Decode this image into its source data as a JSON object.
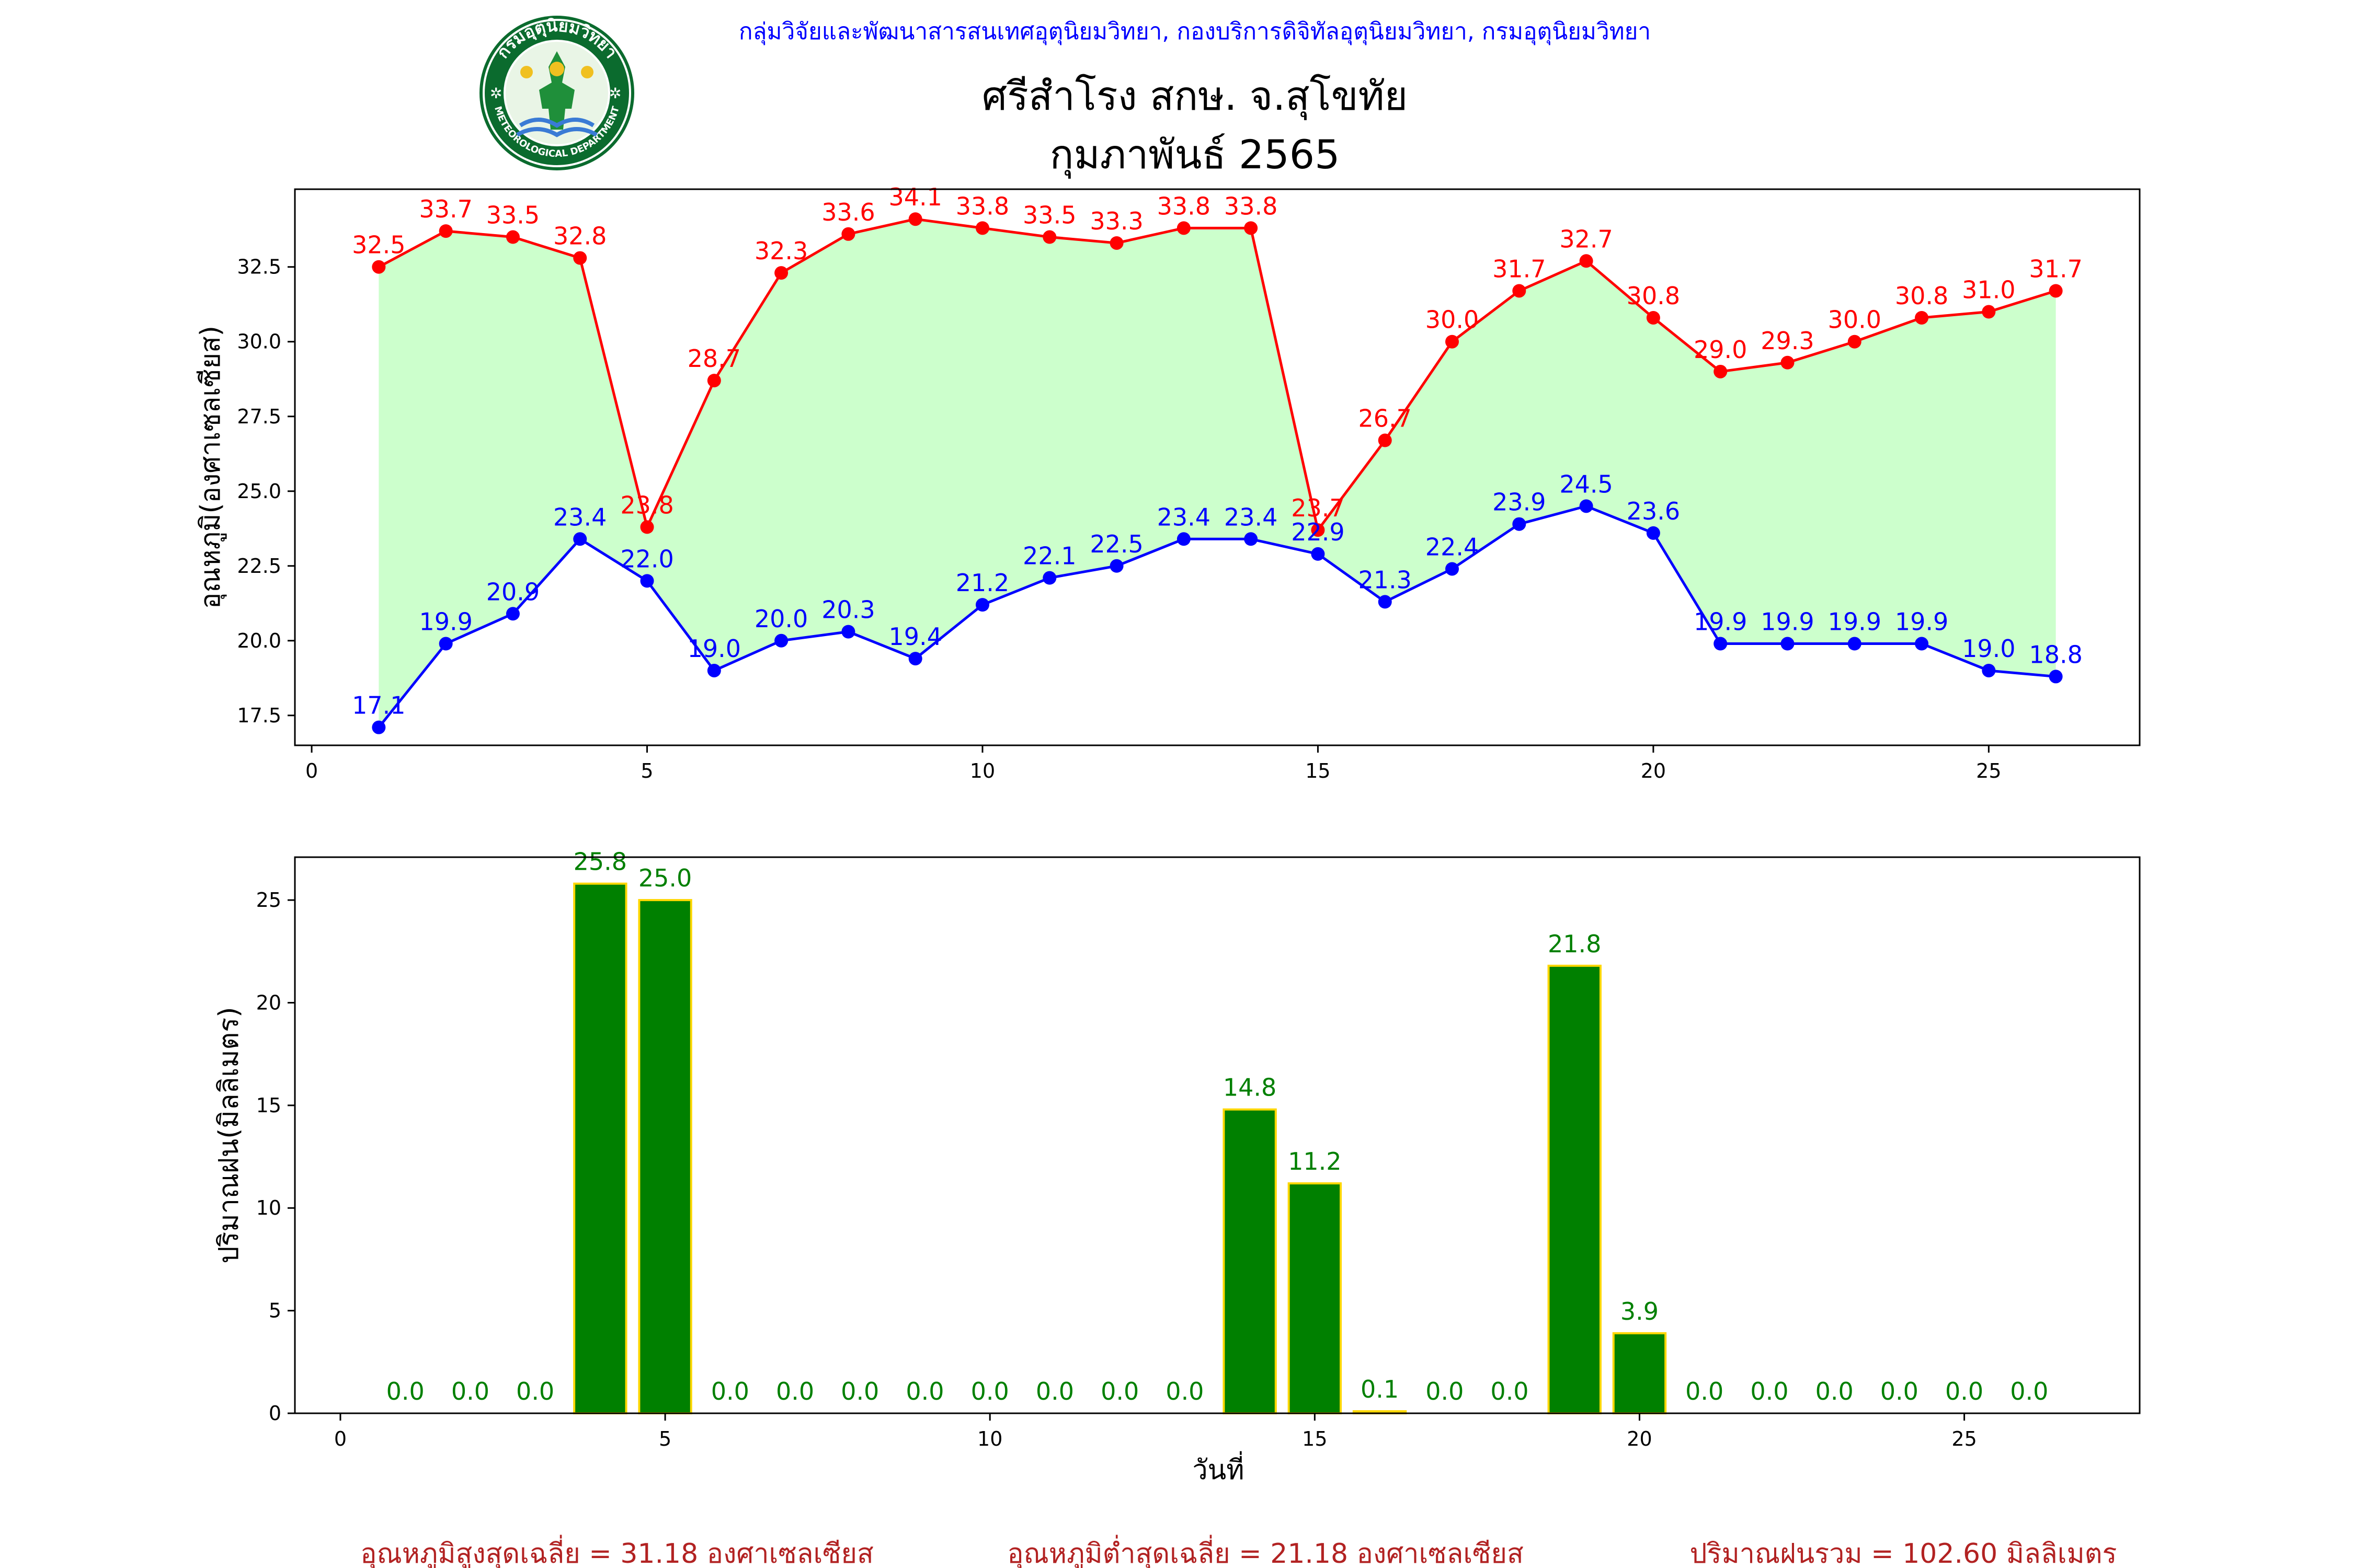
{
  "header": {
    "agency": "กลุ่มวิจัยและพัฒนาสารสนเทศอุตุนิยมวิทยา, กองบริการดิจิทัลอุตุนิยมวิทยา, กรมอุตุนิยมวิทยา",
    "station": "ศรีสำโรง สกษ. จ.สุโขทัย",
    "period": "กุมภาพันธ์ 2565",
    "logo_text_top": "กรมอุตุนิยมวิทยา",
    "logo_text_bottom": "METEOROLOGICAL DEPARTMENT"
  },
  "colors": {
    "max": "#ff0000",
    "min": "#0000ff",
    "fill": "#ccffcc",
    "rain_bar": "#008000",
    "rain_edge": "#ffd700",
    "rain_label": "#008000",
    "footer": "#b22222",
    "header": "#0000ff"
  },
  "chart_data": [
    {
      "type": "line",
      "ylabel": "อุณหภูมิ(องศาเซลเซียส)",
      "xlabel": "",
      "x": [
        1,
        2,
        3,
        4,
        5,
        6,
        7,
        8,
        9,
        10,
        11,
        12,
        13,
        14,
        15,
        16,
        17,
        18,
        19,
        20,
        21,
        22,
        23,
        24,
        25,
        26
      ],
      "xlim": [
        -0.25,
        27.25
      ],
      "ylim": [
        16.5,
        35.1
      ],
      "xticks": [
        0,
        5,
        10,
        15,
        20,
        25
      ],
      "yticks": [
        17.5,
        20.0,
        22.5,
        25.0,
        27.5,
        30.0,
        32.5
      ],
      "fill_between": true,
      "series": [
        {
          "key": "max",
          "values": [
            32.5,
            33.7,
            33.5,
            32.8,
            23.8,
            28.7,
            32.3,
            33.6,
            34.1,
            33.8,
            33.5,
            33.3,
            33.8,
            33.8,
            23.7,
            26.7,
            30.0,
            31.7,
            32.7,
            30.8,
            29.0,
            29.3,
            30.0,
            30.8,
            31.0,
            31.7
          ]
        },
        {
          "key": "min",
          "values": [
            17.1,
            19.9,
            20.9,
            23.4,
            22.0,
            19.0,
            20.0,
            20.3,
            19.4,
            21.2,
            22.1,
            22.5,
            23.4,
            23.4,
            22.9,
            21.3,
            22.4,
            23.9,
            24.5,
            23.6,
            19.9,
            19.9,
            19.9,
            19.9,
            19.0,
            18.8
          ]
        }
      ]
    },
    {
      "type": "bar",
      "ylabel": "ปริมาณฝน(มิลลิเมตร)",
      "xlabel": "วันที่",
      "x": [
        1,
        2,
        3,
        4,
        5,
        6,
        7,
        8,
        9,
        10,
        11,
        12,
        13,
        14,
        15,
        16,
        17,
        18,
        19,
        20,
        21,
        22,
        23,
        24,
        25,
        26
      ],
      "values": [
        0.0,
        0.0,
        0.0,
        25.8,
        25.0,
        0.0,
        0.0,
        0.0,
        0.0,
        0.0,
        0.0,
        0.0,
        0.0,
        14.8,
        11.2,
        0.1,
        0.0,
        0.0,
        21.8,
        3.9,
        0.0,
        0.0,
        0.0,
        0.0,
        0.0,
        0.0
      ],
      "xlim": [
        -0.7,
        27.7
      ],
      "ylim": [
        0,
        27.09
      ],
      "xticks": [
        0,
        5,
        10,
        15,
        20,
        25
      ],
      "yticks": [
        0,
        5,
        10,
        15,
        20,
        25
      ]
    }
  ],
  "footer": {
    "avg_max": "อุณหภูมิสูงสุดเฉลี่ย = 31.18 องศาเซลเซียส",
    "avg_min": "อุณหภูมิต่ำสุดเฉลี่ย = 21.18 องศาเซลเซียส",
    "total_rain": "ปริมาณฝนรวม = 102.60 มิลลิเมตร"
  }
}
